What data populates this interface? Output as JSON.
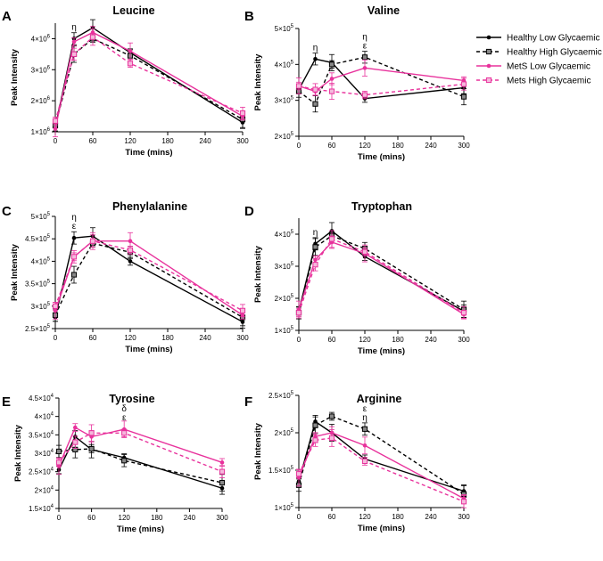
{
  "x_ticks": [
    0,
    60,
    120,
    180,
    240,
    300
  ],
  "x_label": "Time (mins)",
  "y_label": "Peak Intensity",
  "times": [
    0,
    30,
    60,
    120,
    300
  ],
  "series_styles": [
    {
      "name": "Healthy Low Glycaemic",
      "color": "#000000",
      "dash": false,
      "marker": "circle"
    },
    {
      "name": "Healthy High Glycaemic",
      "color": "#000000",
      "dash": true,
      "marker": "square"
    },
    {
      "name": "MetS Low Glycaemic",
      "color": "#e8329c",
      "dash": false,
      "marker": "circle"
    },
    {
      "name": "Mets High Glycaemic",
      "color": "#e8329c",
      "dash": true,
      "marker": "square"
    }
  ],
  "chart_data": [
    {
      "letter": "A",
      "title": "Leucine",
      "type": "line",
      "ylim": [
        1000000,
        4500000
      ],
      "y_ticks": [
        {
          "v": 1000000,
          "m": "1×10",
          "e": "6"
        },
        {
          "v": 2000000,
          "m": "2×10",
          "e": "6"
        },
        {
          "v": 3000000,
          "m": "3×10",
          "e": "6"
        },
        {
          "v": 4000000,
          "m": "4×10",
          "e": "6"
        }
      ],
      "annotations": [
        {
          "x": 30,
          "lines": [
            "η"
          ]
        }
      ],
      "series": [
        {
          "name": "Healthy Low Glycaemic",
          "values": [
            1150000,
            4000000,
            4350000,
            3550000,
            1300000
          ]
        },
        {
          "name": "Healthy High Glycaemic",
          "values": [
            1200000,
            3500000,
            4000000,
            3450000,
            1400000
          ]
        },
        {
          "name": "MetS Low Glycaemic",
          "values": [
            1100000,
            3900000,
            4200000,
            3600000,
            1500000
          ]
        },
        {
          "name": "Mets High Glycaemic",
          "values": [
            1350000,
            3500000,
            4050000,
            3200000,
            1600000
          ]
        }
      ]
    },
    {
      "letter": "B",
      "title": "Valine",
      "type": "line",
      "ylim": [
        200000,
        500000
      ],
      "y_ticks": [
        {
          "v": 200000,
          "m": "2×10",
          "e": "5"
        },
        {
          "v": 300000,
          "m": "3×10",
          "e": "5"
        },
        {
          "v": 400000,
          "m": "4×10",
          "e": "5"
        },
        {
          "v": 500000,
          "m": "5×10",
          "e": "5"
        }
      ],
      "annotations": [
        {
          "x": 30,
          "lines": [
            "η"
          ]
        },
        {
          "x": 120,
          "lines": [
            "η",
            "ε"
          ]
        }
      ],
      "series": [
        {
          "name": "Healthy Low Glycaemic",
          "values": [
            330000,
            415000,
            405000,
            305000,
            335000
          ]
        },
        {
          "name": "Healthy High Glycaemic",
          "values": [
            325000,
            290000,
            400000,
            420000,
            310000
          ]
        },
        {
          "name": "MetS Low Glycaemic",
          "values": [
            340000,
            325000,
            360000,
            390000,
            355000
          ]
        },
        {
          "name": "Mets High Glycaemic",
          "values": [
            340000,
            330000,
            325000,
            315000,
            345000
          ]
        }
      ]
    },
    {
      "letter": "C",
      "title": "Phenylalanine",
      "type": "line",
      "ylim": [
        250000,
        500000
      ],
      "y_ticks": [
        {
          "v": 250000,
          "m": "2.5×10",
          "e": "5"
        },
        {
          "v": 300000,
          "m": "3×10",
          "e": "5"
        },
        {
          "v": 350000,
          "m": "3.5×10",
          "e": "5"
        },
        {
          "v": 400000,
          "m": "4×10",
          "e": "5"
        },
        {
          "v": 450000,
          "m": "4.5×10",
          "e": "5"
        },
        {
          "v": 500000,
          "m": "5×10",
          "e": "5"
        }
      ],
      "annotations": [
        {
          "x": 30,
          "lines": [
            "η",
            "ε"
          ]
        }
      ],
      "series": [
        {
          "name": "Healthy Low Glycaemic",
          "values": [
            275000,
            452000,
            456000,
            400000,
            265000
          ]
        },
        {
          "name": "Healthy High Glycaemic",
          "values": [
            280000,
            370000,
            440000,
            420000,
            275000
          ]
        },
        {
          "name": "MetS Low Glycaemic",
          "values": [
            290000,
            410000,
            445000,
            445000,
            280000
          ]
        },
        {
          "name": "Mets High Glycaemic",
          "values": [
            300000,
            410000,
            445000,
            425000,
            290000
          ]
        }
      ]
    },
    {
      "letter": "D",
      "title": "Tryptophan",
      "type": "line",
      "ylim": [
        100000,
        450000
      ],
      "y_ticks": [
        {
          "v": 100000,
          "m": "1×10",
          "e": "5"
        },
        {
          "v": 200000,
          "m": "2×10",
          "e": "5"
        },
        {
          "v": 300000,
          "m": "3×10",
          "e": "5"
        },
        {
          "v": 400000,
          "m": "4×10",
          "e": "5"
        }
      ],
      "annotations": [
        {
          "x": 30,
          "lines": [
            "η"
          ]
        }
      ],
      "series": [
        {
          "name": "Healthy Low Glycaemic",
          "values": [
            160000,
            370000,
            410000,
            330000,
            160000
          ]
        },
        {
          "name": "Healthy High Glycaemic",
          "values": [
            155000,
            360000,
            395000,
            355000,
            165000
          ]
        },
        {
          "name": "MetS Low Glycaemic",
          "values": [
            165000,
            320000,
            375000,
            340000,
            150000
          ]
        },
        {
          "name": "Mets High Glycaemic",
          "values": [
            155000,
            305000,
            385000,
            345000,
            155000
          ]
        }
      ]
    },
    {
      "letter": "E",
      "title": "Tyrosine",
      "type": "line",
      "ylim": [
        15000,
        45000
      ],
      "y_ticks": [
        {
          "v": 15000,
          "m": "1.5×10",
          "e": "4"
        },
        {
          "v": 20000,
          "m": "2×10",
          "e": "4"
        },
        {
          "v": 25000,
          "m": "2.5×10",
          "e": "4"
        },
        {
          "v": 30000,
          "m": "3×10",
          "e": "4"
        },
        {
          "v": 35000,
          "m": "3.5×10",
          "e": "4"
        },
        {
          "v": 40000,
          "m": "4×10",
          "e": "4"
        },
        {
          "v": 45000,
          "m": "4.5×10",
          "e": "4"
        }
      ],
      "annotations": [
        {
          "x": 120,
          "lines": [
            "δ",
            "ε"
          ]
        }
      ],
      "series": [
        {
          "name": "Healthy Low Glycaemic",
          "values": [
            25500,
            34500,
            31000,
            28800,
            20500
          ]
        },
        {
          "name": "Healthy High Glycaemic",
          "values": [
            30500,
            31000,
            31200,
            28000,
            22000
          ]
        },
        {
          "name": "MetS Low Glycaemic",
          "values": [
            26500,
            37000,
            34500,
            36500,
            27500
          ]
        },
        {
          "name": "Mets High Glycaemic",
          "values": [
            27500,
            33000,
            35500,
            35500,
            25000
          ]
        }
      ]
    },
    {
      "letter": "F",
      "title": "Arginine",
      "type": "line",
      "ylim": [
        100000,
        250000
      ],
      "y_ticks": [
        {
          "v": 100000,
          "m": "1×10",
          "e": "5"
        },
        {
          "v": 150000,
          "m": "1.5×10",
          "e": "5"
        },
        {
          "v": 200000,
          "m": "2×10",
          "e": "5"
        },
        {
          "v": 250000,
          "m": "2.5×10",
          "e": "5"
        }
      ],
      "annotations": [
        {
          "x": 120,
          "lines": [
            "ε",
            "η"
          ]
        }
      ],
      "series": [
        {
          "name": "Healthy Low Glycaemic",
          "values": [
            135000,
            215000,
            200000,
            165000,
            122000
          ]
        },
        {
          "name": "Healthy High Glycaemic",
          "values": [
            130000,
            210000,
            222000,
            205000,
            118000
          ]
        },
        {
          "name": "MetS Low Glycaemic",
          "values": [
            140000,
            195000,
            200000,
            183000,
            112000
          ]
        },
        {
          "name": "Mets High Glycaemic",
          "values": [
            145000,
            190000,
            193000,
            162000,
            108000
          ]
        }
      ]
    }
  ]
}
